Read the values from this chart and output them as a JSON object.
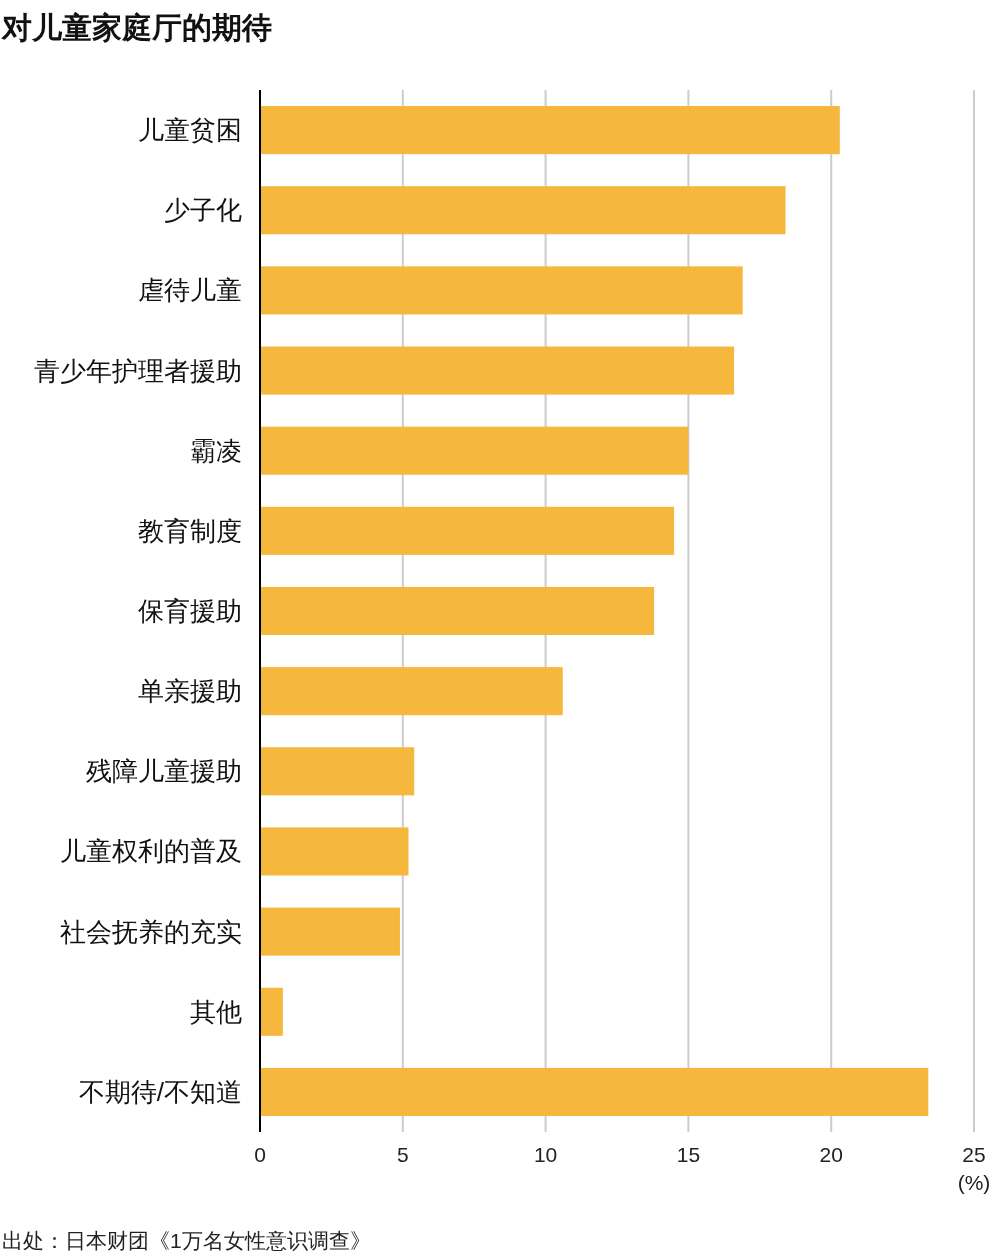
{
  "chart_data": {
    "type": "bar",
    "orientation": "horizontal",
    "title": "对儿童家庭厅的期待",
    "categories": [
      "儿童贫困",
      "少子化",
      "虐待儿童",
      "青少年护理者援助",
      "霸凌",
      "教育制度",
      "保育援助",
      "单亲援助",
      "残障儿童援助",
      "儿童权利的普及",
      "社会抚养的充实",
      "其他",
      "不期待/不知道"
    ],
    "values": [
      20.3,
      18.4,
      16.9,
      16.6,
      15.0,
      14.5,
      13.8,
      10.6,
      5.4,
      5.2,
      4.9,
      0.8,
      23.4
    ],
    "color": "#f5b83d",
    "xlim": [
      0,
      25
    ],
    "xticks": [
      0,
      5,
      10,
      15,
      20,
      25
    ],
    "grid": "x",
    "xlabel": "(%)",
    "annotations": [
      "出处：日本财团《1万名女性意识调查》"
    ]
  }
}
